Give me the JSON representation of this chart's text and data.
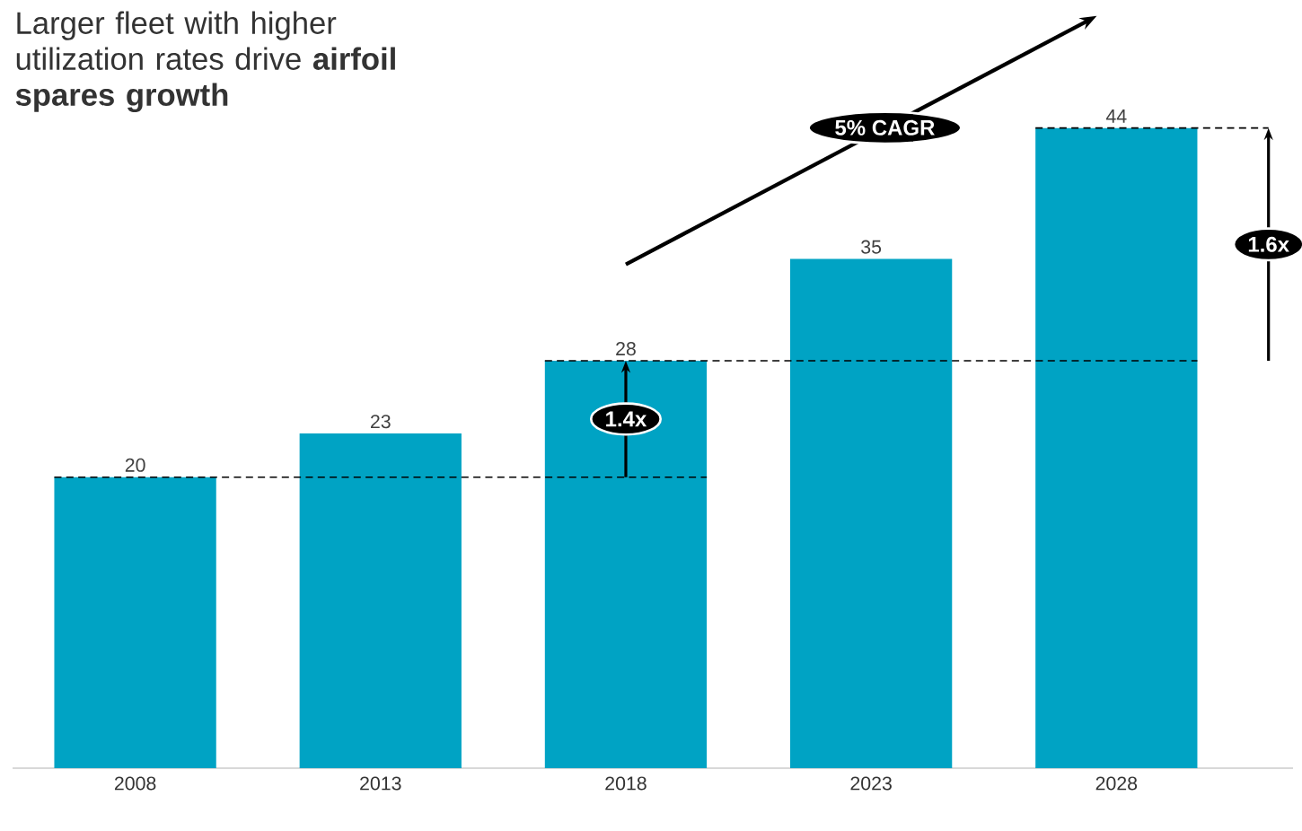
{
  "chart_data": {
    "type": "bar",
    "title": "Larger fleet with higher utilization rates drive **airfoil spares growth**",
    "categories": [
      "2008",
      "2013",
      "2018",
      "2023",
      "2028"
    ],
    "values": [
      20,
      23,
      28,
      35,
      44
    ],
    "color": "#00a3c4",
    "data_labels": true,
    "ref_lines": [
      {
        "axis": "y",
        "value": 20,
        "line_style": "dashed"
      },
      {
        "axis": "y",
        "value": 28,
        "line_style": "dashed"
      },
      {
        "axis": "y",
        "value": 44,
        "line_style": "dashed"
      }
    ],
    "annotations": [
      "5% CAGR",
      "1.4x",
      "1.6x"
    ]
  }
}
